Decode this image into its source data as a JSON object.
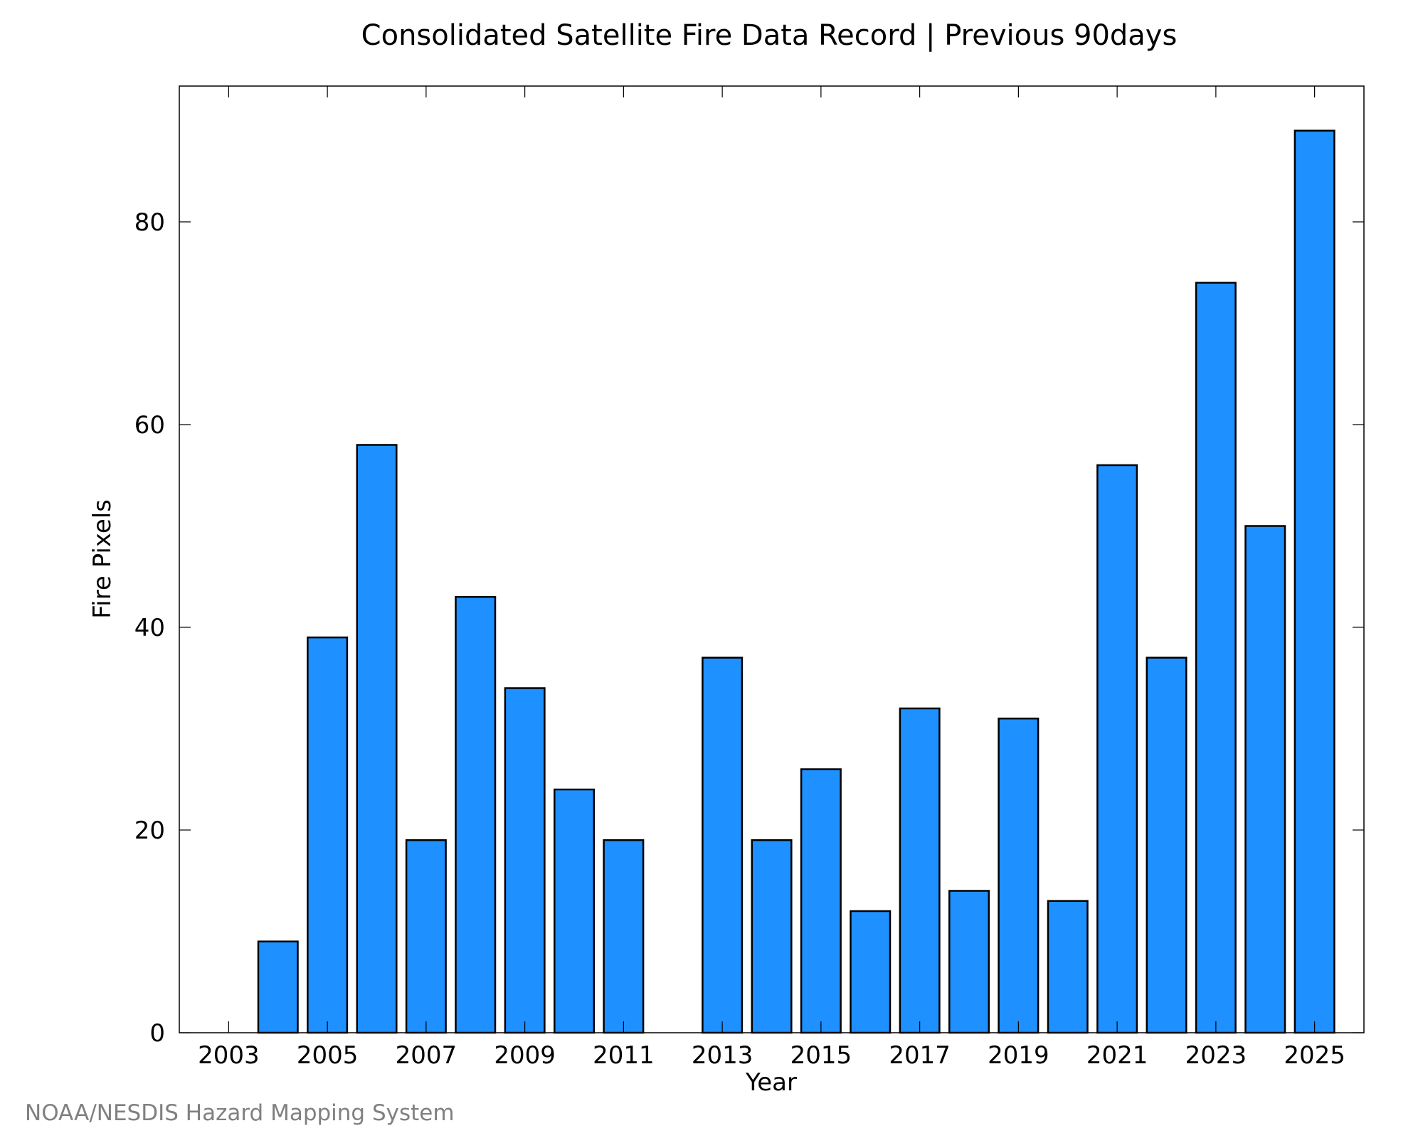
{
  "credit": "NOAA/NESDIS Hazard Mapping System",
  "chart_data": {
    "type": "bar",
    "title": "Consolidated Satellite Fire Data Record | Previous 90days",
    "xlabel": "Year",
    "ylabel": "Fire Pixels",
    "categories": [
      "2003",
      "2004",
      "2005",
      "2006",
      "2007",
      "2008",
      "2009",
      "2010",
      "2011",
      "2012",
      "2013",
      "2014",
      "2015",
      "2016",
      "2017",
      "2018",
      "2019",
      "2020",
      "2021",
      "2022",
      "2023",
      "2024",
      "2025"
    ],
    "values": [
      0,
      9,
      39,
      58,
      19,
      43,
      34,
      24,
      19,
      0,
      37,
      19,
      26,
      12,
      32,
      14,
      31,
      13,
      56,
      37,
      74,
      50,
      89
    ],
    "x_tick_labels": [
      "2003",
      "2005",
      "2007",
      "2009",
      "2011",
      "2013",
      "2015",
      "2017",
      "2019",
      "2021",
      "2023",
      "2025"
    ],
    "y_ticks": [
      0,
      20,
      40,
      60,
      80
    ],
    "ylim": [
      0,
      93.4
    ],
    "bar_color": "#1e90ff",
    "bar_edge_color": "#000000",
    "credit_color": "#808080",
    "grid": false
  }
}
